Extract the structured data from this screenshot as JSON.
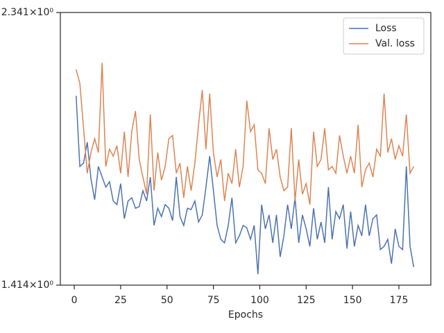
{
  "chart_data": {
    "type": "line",
    "xlabel": "Epochs",
    "x": [
      1,
      3,
      5,
      7,
      9,
      11,
      13,
      15,
      17,
      19,
      21,
      23,
      25,
      27,
      29,
      31,
      33,
      35,
      37,
      39,
      41,
      43,
      45,
      47,
      49,
      51,
      53,
      55,
      57,
      59,
      61,
      63,
      65,
      67,
      69,
      71,
      73,
      75,
      77,
      79,
      81,
      83,
      85,
      87,
      89,
      91,
      93,
      95,
      97,
      99,
      101,
      103,
      105,
      107,
      109,
      111,
      113,
      115,
      117,
      119,
      121,
      123,
      125,
      127,
      129,
      131,
      133,
      135,
      137,
      139,
      141,
      143,
      145,
      147,
      149,
      151,
      153,
      155,
      157,
      159,
      161,
      163,
      165,
      167,
      169,
      171,
      173,
      175,
      177,
      179,
      181,
      183
    ],
    "series": [
      {
        "name": "Loss",
        "color": "#4c72b0",
        "values": [
          2.007,
          1.761,
          1.772,
          1.842,
          1.721,
          1.656,
          1.761,
          1.727,
          1.695,
          1.712,
          1.652,
          1.641,
          1.706,
          1.599,
          1.652,
          1.662,
          1.63,
          1.635,
          1.684,
          1.652,
          1.727,
          1.579,
          1.63,
          1.605,
          1.641,
          1.63,
          1.593,
          1.727,
          1.605,
          1.579,
          1.63,
          1.626,
          1.652,
          1.589,
          1.61,
          1.695,
          1.795,
          1.684,
          1.579,
          1.539,
          1.529,
          1.579,
          1.662,
          1.529,
          1.549,
          1.579,
          1.572,
          1.539,
          1.579,
          1.443,
          1.641,
          1.569,
          1.61,
          1.529,
          1.61,
          1.49,
          1.549,
          1.641,
          1.569,
          1.662,
          1.529,
          1.61,
          1.569,
          1.519,
          1.63,
          1.539,
          1.589,
          1.529,
          1.695,
          1.539,
          1.62,
          1.599,
          1.641,
          1.513,
          1.62,
          1.519,
          1.579,
          1.549,
          1.641,
          1.549,
          1.599,
          1.61,
          1.51,
          1.519,
          1.539,
          1.471,
          1.569,
          1.519,
          1.51,
          1.761,
          1.519,
          1.462
        ]
      },
      {
        "name": "Val. loss",
        "color": "#dd8452",
        "values": [
          2.107,
          2.054,
          1.89,
          1.739,
          1.807,
          1.854,
          1.807,
          2.133,
          1.761,
          1.818,
          1.795,
          1.83,
          1.739,
          1.878,
          1.727,
          1.878,
          1.951,
          1.784,
          1.727,
          1.673,
          1.939,
          1.684,
          1.807,
          1.717,
          1.761,
          1.854,
          1.865,
          1.739,
          1.772,
          1.662,
          1.761,
          1.684,
          1.772,
          1.902,
          2.028,
          1.818,
          2.015,
          1.807,
          1.727,
          1.784,
          1.652,
          1.739,
          1.706,
          1.818,
          1.695,
          1.761,
          1.989,
          1.878,
          1.902,
          1.75,
          1.739,
          1.706,
          1.89,
          1.784,
          1.818,
          1.727,
          1.684,
          1.695,
          1.89,
          1.652,
          1.784,
          1.673,
          1.706,
          1.641,
          1.878,
          1.761,
          1.784,
          1.89,
          1.75,
          1.761,
          1.739,
          1.865,
          1.795,
          1.739,
          1.795,
          1.739,
          1.902,
          1.695,
          1.75,
          1.772,
          1.727,
          1.818,
          1.795,
          2.015,
          1.807,
          1.854,
          1.784,
          1.83,
          1.795,
          1.939,
          1.739,
          1.761
        ]
      }
    ],
    "xlim": [
      -7.5,
      192.2
    ],
    "xticks": [
      0,
      25,
      50,
      75,
      100,
      125,
      150,
      175
    ],
    "ylim": [
      1.414,
      2.341
    ],
    "yticks": [
      {
        "value": 1.414,
        "label": "1.414×10⁰"
      },
      {
        "value": 2.341,
        "label": "2.341×10⁰"
      }
    ],
    "ylog": true,
    "legend": "upper right"
  }
}
